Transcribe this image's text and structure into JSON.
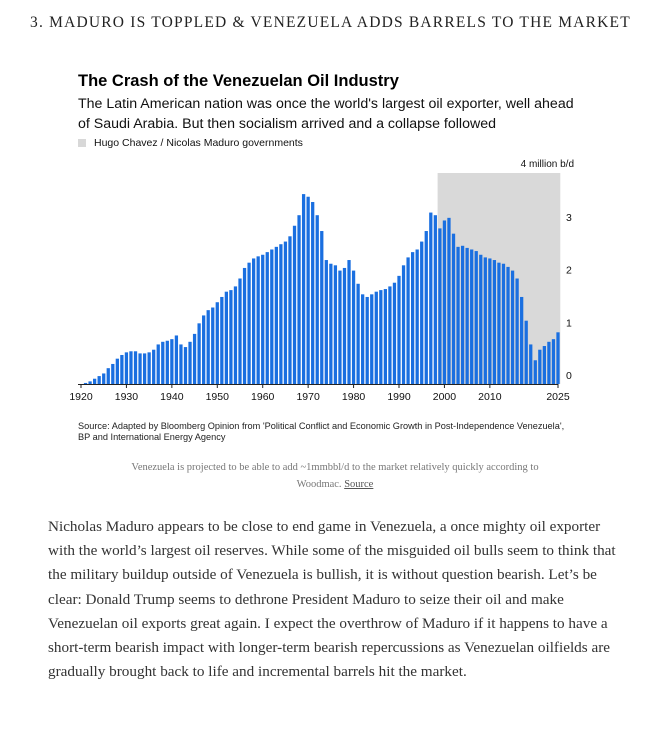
{
  "section_heading": "3. MADURO IS TOPPLED & VENEZUELA ADDS BARRELS TO THE MARKET",
  "legend_label": "Hugo Chavez / Nicolas Maduro governments",
  "source_note": "Source: Adapted by Bloomberg Opinion from 'Political Conflict and Economic Growth in Post-Independence Venezuela', BP and International Energy Agency",
  "caption": {
    "text": "Venezuela is projected to be able to add ~1mmbbl/d to the market relatively quickly according to Woodmac. ",
    "link_label": "Source"
  },
  "article_paragraph": "Nicholas Maduro appears to be close to end game in Venezuela, a once mighty oil exporter with the world’s largest oil reserves. While some of the misguided oil bulls seem to think that the military buildup outside of Venezuela is bullish, it is without question bearish. Let’s be clear: Donald Trump seems to dethrone President Maduro to seize their oil and make Venezuelan oil exports great again. I expect the overthrow of Maduro if it happens to have a short-term bearish impact with longer-term bearish repercussions as Venezuelan oilfields are gradually brought back to life and incremental barrels hit the market.",
  "chart_data": {
    "type": "bar",
    "title": "The Crash of the Venezuelan Oil Industry",
    "subtitle": "The Latin American nation was once the world's largest oil exporter, well ahead of Saudi Arabia. But then socialism arrived and a collapse followed",
    "unit_label": "4 million b/d",
    "bar_color": "#1a6fe0",
    "shade_color": "#d9d9d9",
    "shaded_period": [
      1999,
      2025
    ],
    "ylim": [
      0,
      4
    ],
    "xlim": [
      1920,
      2025
    ],
    "y_ticks": [
      0,
      1,
      2,
      3
    ],
    "x_ticks": [
      1920,
      1930,
      1940,
      1950,
      1960,
      1970,
      1980,
      1990,
      2000,
      2010,
      2025
    ],
    "x": [
      1921,
      1922,
      1923,
      1924,
      1925,
      1926,
      1927,
      1928,
      1929,
      1930,
      1931,
      1932,
      1933,
      1934,
      1935,
      1936,
      1937,
      1938,
      1939,
      1940,
      1941,
      1942,
      1943,
      1944,
      1945,
      1946,
      1947,
      1948,
      1949,
      1950,
      1951,
      1952,
      1953,
      1954,
      1955,
      1956,
      1957,
      1958,
      1959,
      1960,
      1961,
      1962,
      1963,
      1964,
      1965,
      1966,
      1967,
      1968,
      1969,
      1970,
      1971,
      1972,
      1973,
      1974,
      1975,
      1976,
      1977,
      1978,
      1979,
      1980,
      1981,
      1982,
      1983,
      1984,
      1985,
      1986,
      1987,
      1988,
      1989,
      1990,
      1991,
      1992,
      1993,
      1994,
      1995,
      1996,
      1997,
      1998,
      1999,
      2000,
      2001,
      2002,
      2003,
      2004,
      2005,
      2006,
      2007,
      2008,
      2009,
      2010,
      2011,
      2012,
      2013,
      2014,
      2015,
      2016,
      2017,
      2018,
      2019,
      2020,
      2021,
      2022,
      2023,
      2024,
      2025
    ],
    "values": [
      0.02,
      0.05,
      0.1,
      0.15,
      0.2,
      0.3,
      0.38,
      0.48,
      0.55,
      0.6,
      0.62,
      0.62,
      0.58,
      0.58,
      0.6,
      0.65,
      0.75,
      0.8,
      0.82,
      0.85,
      0.92,
      0.75,
      0.7,
      0.8,
      0.95,
      1.15,
      1.3,
      1.4,
      1.45,
      1.55,
      1.65,
      1.75,
      1.78,
      1.85,
      2.0,
      2.2,
      2.3,
      2.38,
      2.42,
      2.45,
      2.5,
      2.55,
      2.6,
      2.65,
      2.7,
      2.8,
      3.0,
      3.2,
      3.6,
      3.55,
      3.45,
      3.2,
      2.9,
      2.35,
      2.28,
      2.25,
      2.15,
      2.2,
      2.35,
      2.15,
      1.9,
      1.7,
      1.65,
      1.7,
      1.75,
      1.78,
      1.8,
      1.85,
      1.92,
      2.05,
      2.25,
      2.4,
      2.5,
      2.55,
      2.7,
      2.9,
      3.25,
      3.2,
      2.95,
      3.1,
      3.15,
      2.85,
      2.6,
      2.62,
      2.58,
      2.55,
      2.52,
      2.45,
      2.4,
      2.38,
      2.35,
      2.3,
      2.28,
      2.22,
      2.15,
      2.0,
      1.65,
      1.2,
      0.75,
      0.45,
      0.65,
      0.72,
      0.8,
      0.85,
      0.98
    ]
  }
}
